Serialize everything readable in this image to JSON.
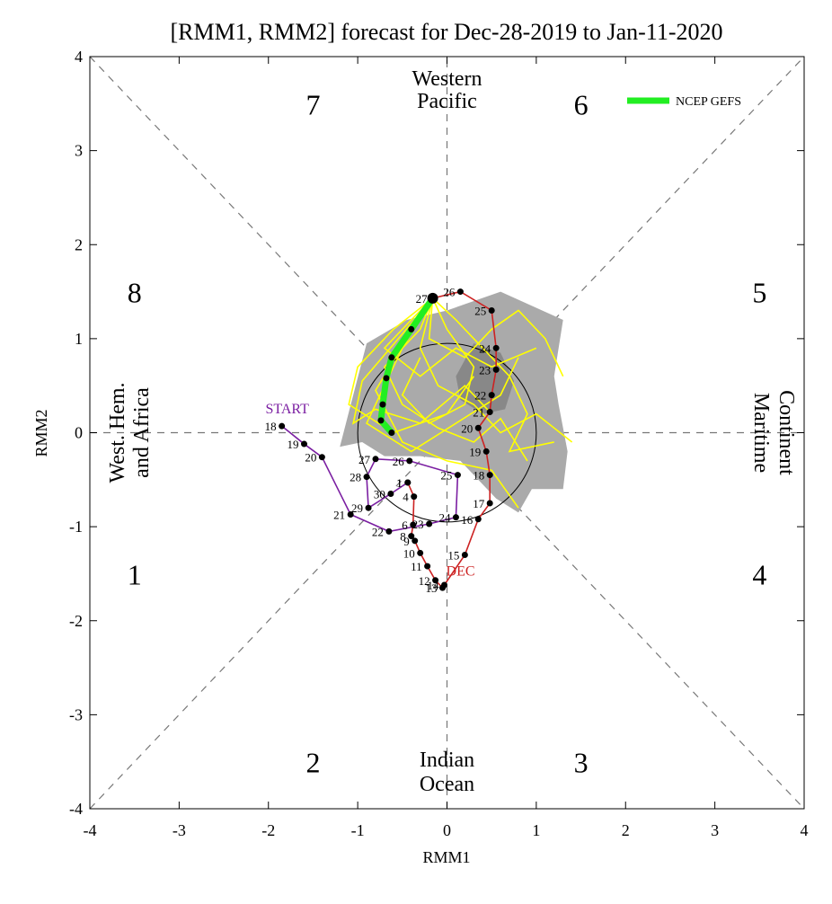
{
  "chart_data": {
    "type": "line",
    "title": "[RMM1, RMM2] forecast for Dec-28-2019 to Jan-11-2020",
    "xlabel": "RMM1",
    "ylabel": "RMM2",
    "xlim": [
      -4,
      4
    ],
    "ylim": [
      -4,
      4
    ],
    "x_ticks": [
      -4,
      -3,
      -2,
      -1,
      0,
      1,
      2,
      3,
      4
    ],
    "y_ticks": [
      -4,
      -3,
      -2,
      -1,
      0,
      1,
      2,
      3,
      4
    ],
    "phase_labels": [
      {
        "text": "1",
        "x": -3.5,
        "y": -1.5
      },
      {
        "text": "2",
        "x": -1.5,
        "y": -3.5
      },
      {
        "text": "3",
        "x": 1.5,
        "y": -3.5
      },
      {
        "text": "4",
        "x": 3.5,
        "y": -1.5
      },
      {
        "text": "5",
        "x": 3.5,
        "y": 1.5
      },
      {
        "text": "6",
        "x": 1.5,
        "y": 3.5
      },
      {
        "text": "7",
        "x": -1.5,
        "y": 3.5
      },
      {
        "text": "8",
        "x": -3.5,
        "y": 1.5
      }
    ],
    "region_labels": {
      "top": [
        "Western",
        "Pacific"
      ],
      "bottom": [
        "Indian",
        "Ocean"
      ],
      "left": [
        "West. Hem.",
        "and Africa"
      ],
      "right": [
        "Maritime",
        "Continent"
      ]
    },
    "legend": {
      "label": "NCEP GEFS",
      "color": "#22ee22",
      "position": "top-right"
    },
    "colors": {
      "nov": "#7b1fa2",
      "dec": "#cc2222",
      "forecast_mean": "#22ee22",
      "ensemble": "#ffff00",
      "spread_outer": "#aaaaaa",
      "spread_inner": "#888888"
    },
    "series": [
      {
        "name": "START",
        "points": [
          {
            "d": "18",
            "x": -1.85,
            "y": 0.07
          },
          {
            "d": "19",
            "x": -1.6,
            "y": -0.12
          },
          {
            "d": "20",
            "x": -1.4,
            "y": -0.26
          },
          {
            "d": "21",
            "x": -1.08,
            "y": -0.87
          },
          {
            "d": "22",
            "x": -0.65,
            "y": -1.05
          },
          {
            "d": "23",
            "x": -0.2,
            "y": -0.97
          },
          {
            "d": "24",
            "x": 0.1,
            "y": -0.9
          },
          {
            "d": "25",
            "x": 0.12,
            "y": -0.45
          },
          {
            "d": "26",
            "x": -0.42,
            "y": -0.3
          },
          {
            "d": "27",
            "x": -0.8,
            "y": -0.28
          },
          {
            "d": "28",
            "x": -0.9,
            "y": -0.47
          },
          {
            "d": "29",
            "x": -0.88,
            "y": -0.8
          },
          {
            "d": "30",
            "x": -0.63,
            "y": -0.65
          },
          {
            "d": "1",
            "x": -0.44,
            "y": -0.53
          }
        ]
      },
      {
        "name": "DEC",
        "points": [
          {
            "d": "1",
            "x": -0.44,
            "y": -0.53
          },
          {
            "d": "4",
            "x": -0.37,
            "y": -0.68
          },
          {
            "d": "6",
            "x": -0.38,
            "y": -0.98
          },
          {
            "d": "8",
            "x": -0.4,
            "y": -1.1
          },
          {
            "d": "9",
            "x": -0.36,
            "y": -1.15
          },
          {
            "d": "10",
            "x": -0.3,
            "y": -1.28
          },
          {
            "d": "11",
            "x": -0.22,
            "y": -1.42
          },
          {
            "d": "12",
            "x": -0.13,
            "y": -1.57
          },
          {
            "d": "13",
            "x": -0.05,
            "y": -1.65
          },
          {
            "d": "14",
            "x": -0.03,
            "y": -1.62
          },
          {
            "d": "15",
            "x": 0.2,
            "y": -1.3
          },
          {
            "d": "16",
            "x": 0.35,
            "y": -0.92
          },
          {
            "d": "17",
            "x": 0.48,
            "y": -0.75
          },
          {
            "d": "18",
            "x": 0.48,
            "y": -0.45
          },
          {
            "d": "19",
            "x": 0.44,
            "y": -0.2
          },
          {
            "d": "20",
            "x": 0.35,
            "y": 0.05
          },
          {
            "d": "21",
            "x": 0.48,
            "y": 0.22
          },
          {
            "d": "22",
            "x": 0.5,
            "y": 0.4
          },
          {
            "d": "23",
            "x": 0.55,
            "y": 0.67
          },
          {
            "d": "24",
            "x": 0.55,
            "y": 0.9
          },
          {
            "d": "25",
            "x": 0.5,
            "y": 1.3
          },
          {
            "d": "26",
            "x": 0.15,
            "y": 1.5
          },
          {
            "d": "27",
            "x": -0.16,
            "y": 1.43
          }
        ]
      },
      {
        "name": "NCEP GEFS",
        "points": [
          {
            "x": -0.16,
            "y": 1.43
          },
          {
            "x": -0.4,
            "y": 1.1
          },
          {
            "x": -0.62,
            "y": 0.8
          },
          {
            "x": -0.68,
            "y": 0.58
          },
          {
            "x": -0.72,
            "y": 0.3
          },
          {
            "x": -0.74,
            "y": 0.13
          },
          {
            "x": -0.62,
            "y": 0.0
          }
        ]
      }
    ],
    "ensemble_members": [
      [
        [
          -0.16,
          1.43
        ],
        [
          -0.5,
          1.05
        ],
        [
          -0.95,
          0.55
        ],
        [
          -1.05,
          0.1
        ],
        [
          -0.8,
          0.25
        ],
        [
          -0.3,
          0.1
        ],
        [
          0.2,
          0.5
        ],
        [
          0.5,
          0.2
        ]
      ],
      [
        [
          -0.16,
          1.43
        ],
        [
          -0.3,
          1.1
        ],
        [
          -0.7,
          0.7
        ],
        [
          -0.5,
          0.3
        ],
        [
          -0.1,
          0.05
        ],
        [
          0.3,
          -0.1
        ],
        [
          0.6,
          0.15
        ],
        [
          0.9,
          -0.3
        ]
      ],
      [
        [
          -0.16,
          1.43
        ],
        [
          0.1,
          1.2
        ],
        [
          0.4,
          0.9
        ],
        [
          0.7,
          0.6
        ],
        [
          0.9,
          0.2
        ],
        [
          0.7,
          -0.2
        ],
        [
          1.2,
          -0.1
        ]
      ],
      [
        [
          -0.16,
          1.43
        ],
        [
          -0.45,
          1.0
        ],
        [
          -0.8,
          0.45
        ],
        [
          -0.5,
          -0.1
        ],
        [
          0.0,
          -0.3
        ],
        [
          0.5,
          -0.4
        ],
        [
          0.8,
          -0.8
        ]
      ],
      [
        [
          -0.16,
          1.43
        ],
        [
          -0.2,
          1.0
        ],
        [
          0.2,
          0.8
        ],
        [
          0.5,
          1.1
        ],
        [
          0.8,
          1.3
        ],
        [
          1.1,
          1.0
        ],
        [
          1.3,
          0.6
        ]
      ],
      [
        [
          -0.16,
          1.43
        ],
        [
          -0.6,
          1.1
        ],
        [
          -1.0,
          0.7
        ],
        [
          -1.1,
          0.3
        ],
        [
          -0.6,
          0.0
        ],
        [
          0.0,
          0.2
        ],
        [
          0.3,
          0.6
        ]
      ],
      [
        [
          -0.16,
          1.43
        ],
        [
          -0.3,
          0.9
        ],
        [
          -0.1,
          0.5
        ],
        [
          0.3,
          0.3
        ],
        [
          0.6,
          0.0
        ],
        [
          1.0,
          0.2
        ],
        [
          1.4,
          -0.1
        ]
      ],
      [
        [
          -0.16,
          1.43
        ],
        [
          -0.5,
          0.9
        ],
        [
          -0.9,
          0.1
        ],
        [
          -0.4,
          -0.2
        ],
        [
          0.1,
          0.1
        ],
        [
          0.6,
          0.4
        ],
        [
          0.8,
          0.8
        ]
      ],
      [
        [
          -0.16,
          1.43
        ],
        [
          0.0,
          1.1
        ],
        [
          0.3,
          0.7
        ],
        [
          0.2,
          0.3
        ],
        [
          -0.2,
          0.1
        ],
        [
          -0.5,
          0.4
        ],
        [
          -0.3,
          0.8
        ]
      ],
      [
        [
          -0.16,
          1.43
        ],
        [
          -0.4,
          1.2
        ],
        [
          -0.7,
          0.9
        ],
        [
          -0.3,
          0.6
        ],
        [
          0.1,
          0.9
        ],
        [
          0.5,
          0.7
        ],
        [
          1.0,
          0.9
        ]
      ]
    ],
    "spread_outer": [
      [
        -1.2,
        -0.15
      ],
      [
        -1.05,
        0.4
      ],
      [
        -0.9,
        0.95
      ],
      [
        -0.45,
        1.2
      ],
      [
        0.0,
        1.3
      ],
      [
        0.6,
        1.5
      ],
      [
        1.3,
        1.2
      ],
      [
        1.2,
        0.6
      ],
      [
        1.25,
        0.3
      ],
      [
        1.35,
        -0.2
      ],
      [
        1.3,
        -0.6
      ],
      [
        0.95,
        -0.6
      ],
      [
        0.8,
        -0.85
      ],
      [
        0.55,
        -0.7
      ],
      [
        0.15,
        -0.3
      ],
      [
        -0.3,
        -0.25
      ],
      [
        -0.7,
        -0.25
      ],
      [
        -0.95,
        -0.1
      ]
    ],
    "spread_inner": [
      [
        0.1,
        0.6
      ],
      [
        0.3,
        0.95
      ],
      [
        0.6,
        0.85
      ],
      [
        0.75,
        0.55
      ],
      [
        0.65,
        0.25
      ],
      [
        0.4,
        0.2
      ],
      [
        0.15,
        0.35
      ]
    ]
  }
}
